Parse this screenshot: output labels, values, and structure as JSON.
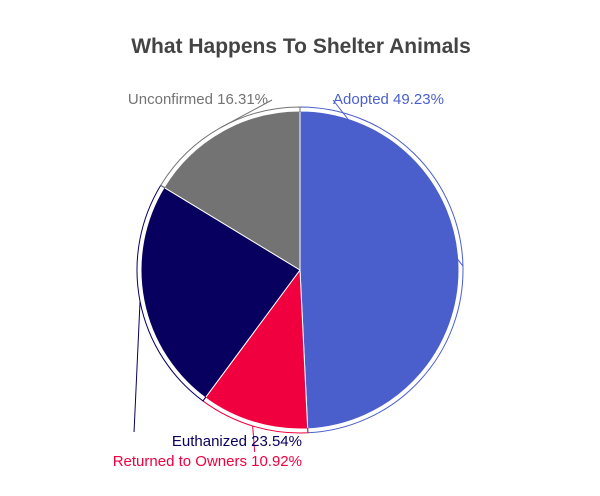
{
  "chart_data": {
    "type": "pie",
    "title": "What Happens To Shelter Animals",
    "slices": [
      {
        "name": "Adopted",
        "value": 49.23,
        "label": "Adopted 49.23%",
        "color": "#4b5fcc"
      },
      {
        "name": "Returned to Owners",
        "value": 10.92,
        "label": "Returned to Owners 10.92%",
        "color": "#f0003f"
      },
      {
        "name": "Euthanized",
        "value": 23.54,
        "label": "Euthanized 23.54%",
        "color": "#07005e"
      },
      {
        "name": "Unconfirmed",
        "value": 16.31,
        "label": "Unconfirmed 16.31%",
        "color": "#737373"
      }
    ]
  }
}
